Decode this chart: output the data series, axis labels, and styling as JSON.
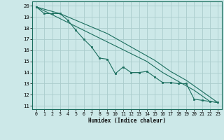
{
  "xlabel": "Humidex (Indice chaleur)",
  "bg_color": "#cce8e8",
  "grid_color": "#aacccc",
  "line_color": "#1a6e5e",
  "xlim": [
    -0.5,
    23.5
  ],
  "ylim": [
    10.7,
    20.4
  ],
  "xticks": [
    0,
    1,
    2,
    3,
    4,
    5,
    6,
    7,
    8,
    9,
    10,
    11,
    12,
    13,
    14,
    15,
    16,
    17,
    18,
    19,
    20,
    21,
    22,
    23
  ],
  "yticks": [
    11,
    12,
    13,
    14,
    15,
    16,
    17,
    18,
    19,
    20
  ],
  "line1_x": [
    0,
    1,
    2,
    3,
    4,
    5,
    6,
    7,
    8,
    9,
    10,
    11,
    12,
    13,
    14,
    15,
    16,
    17,
    18,
    19,
    20,
    21,
    22,
    23
  ],
  "line1_y": [
    19.9,
    19.3,
    19.3,
    19.3,
    18.7,
    17.8,
    17.0,
    16.3,
    15.3,
    15.2,
    13.9,
    14.5,
    14.0,
    14.0,
    14.1,
    13.6,
    13.1,
    13.1,
    13.0,
    13.0,
    11.6,
    11.5,
    11.4,
    11.3
  ],
  "line2_x": [
    0,
    1,
    2,
    3,
    4,
    5,
    6,
    7,
    8,
    9,
    10,
    11,
    12,
    13,
    14,
    15,
    16,
    17,
    18,
    19,
    20,
    21,
    22,
    23
  ],
  "line2_y": [
    19.9,
    19.55,
    19.2,
    18.85,
    18.5,
    18.15,
    17.8,
    17.45,
    17.1,
    16.75,
    16.4,
    16.05,
    15.7,
    15.35,
    15.0,
    14.5,
    14.0,
    13.6,
    13.2,
    12.8,
    12.4,
    11.9,
    11.4,
    11.3
  ],
  "line3_x": [
    0,
    1,
    2,
    3,
    4,
    5,
    6,
    7,
    8,
    9,
    10,
    11,
    12,
    13,
    14,
    15,
    16,
    17,
    18,
    19,
    20,
    21,
    22,
    23
  ],
  "line3_y": [
    19.9,
    19.7,
    19.5,
    19.3,
    19.0,
    18.7,
    18.4,
    18.1,
    17.8,
    17.5,
    17.1,
    16.7,
    16.3,
    15.9,
    15.5,
    15.1,
    14.6,
    14.1,
    13.7,
    13.3,
    12.8,
    12.3,
    11.8,
    11.3
  ]
}
